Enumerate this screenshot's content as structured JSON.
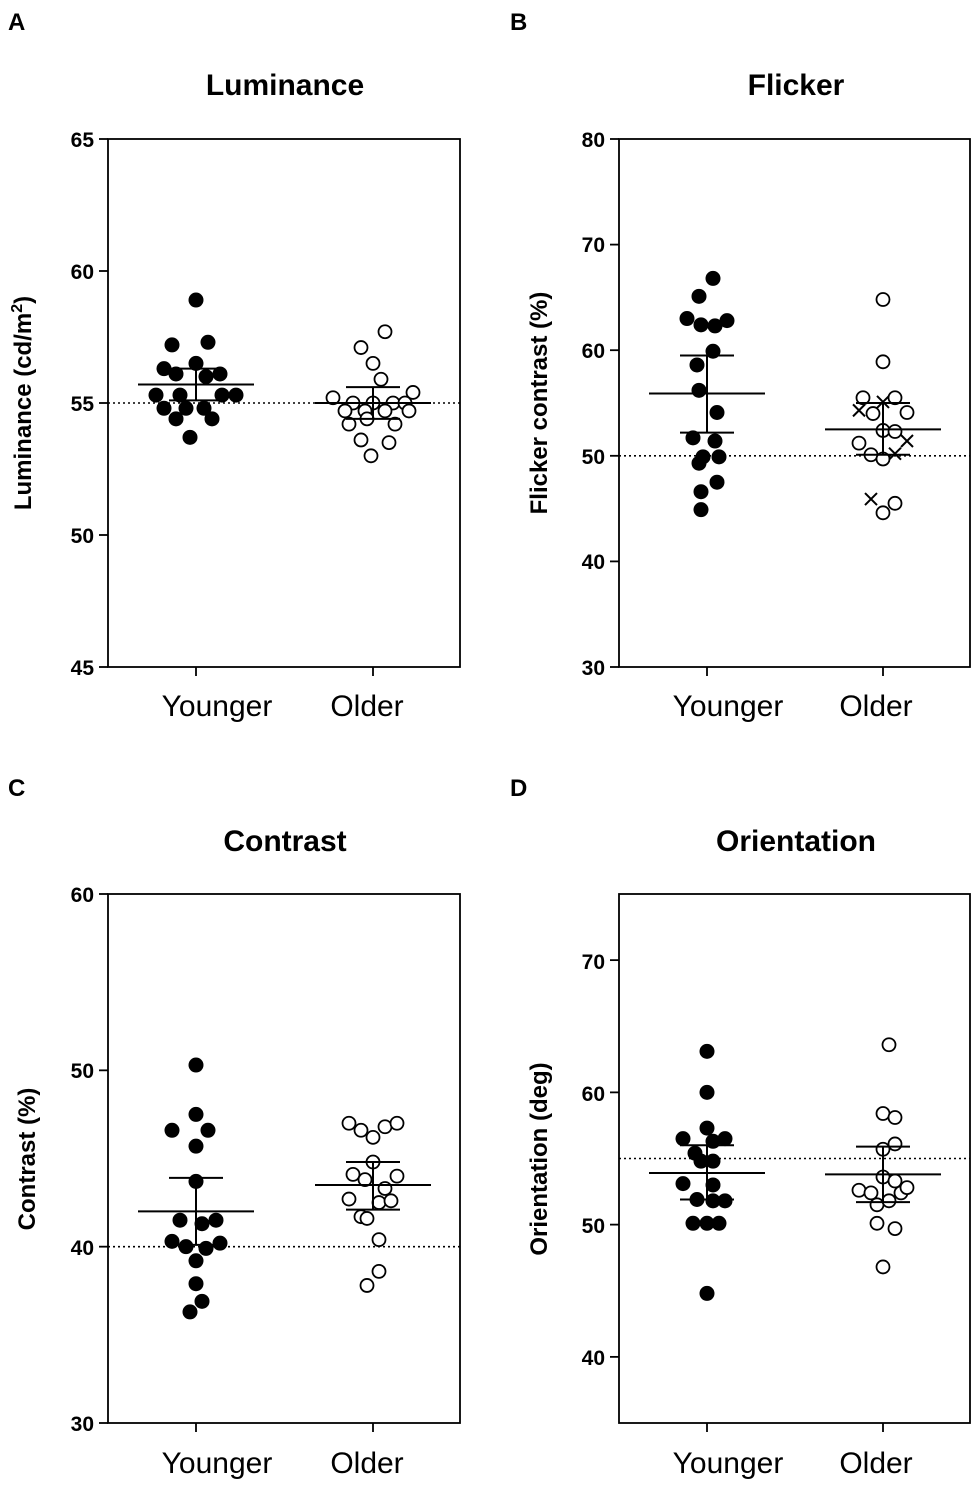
{
  "chart_data": [
    {
      "type": "scatter",
      "panel_label": "A",
      "title": "Luminance",
      "ylabel": "Luminance (cd/m",
      "ylabel_sup": "2",
      "ylabel_suffix": ")",
      "ylim": [
        45,
        65
      ],
      "yticks": [
        45,
        50,
        55,
        60,
        65
      ],
      "categories": [
        "Younger",
        "Older"
      ],
      "reference_line": 55,
      "series": [
        {
          "name": "Younger",
          "marker": "filled-circle",
          "mean": 55.7,
          "ci": [
            55.1,
            56.3
          ],
          "points": [
            [
              0,
              58.9
            ],
            [
              -0.24,
              57.2
            ],
            [
              0.12,
              57.3
            ],
            [
              -0.32,
              56.3
            ],
            [
              0,
              56.5
            ],
            [
              -0.2,
              56.1
            ],
            [
              0.1,
              56.0
            ],
            [
              0.24,
              56.1
            ],
            [
              -0.4,
              55.3
            ],
            [
              -0.16,
              55.3
            ],
            [
              0.26,
              55.3
            ],
            [
              0.4,
              55.3
            ],
            [
              -0.32,
              54.8
            ],
            [
              -0.1,
              54.8
            ],
            [
              0.08,
              54.8
            ],
            [
              -0.2,
              54.4
            ],
            [
              0.16,
              54.4
            ],
            [
              -0.06,
              53.7
            ]
          ]
        },
        {
          "name": "Older",
          "marker": "open-circle",
          "mean": 55.0,
          "ci": [
            54.4,
            55.6
          ],
          "points": [
            [
              0.12,
              57.7
            ],
            [
              -0.12,
              57.1
            ],
            [
              0,
              56.5
            ],
            [
              0.08,
              55.9
            ],
            [
              -0.4,
              55.2
            ],
            [
              0.4,
              55.4
            ],
            [
              -0.2,
              55.0
            ],
            [
              0.2,
              55.0
            ],
            [
              0.32,
              55.0
            ],
            [
              0,
              55.0
            ],
            [
              -0.28,
              54.7
            ],
            [
              -0.08,
              54.7
            ],
            [
              0.12,
              54.7
            ],
            [
              0.36,
              54.7
            ],
            [
              -0.06,
              54.4
            ],
            [
              -0.24,
              54.2
            ],
            [
              0.22,
              54.2
            ],
            [
              -0.12,
              53.6
            ],
            [
              0.16,
              53.5
            ],
            [
              -0.02,
              53.0
            ]
          ]
        }
      ]
    },
    {
      "type": "scatter",
      "panel_label": "B",
      "title": "Flicker",
      "ylabel": "Flicker contrast (%)",
      "ylim": [
        30,
        80
      ],
      "yticks": [
        30,
        40,
        50,
        60,
        70,
        80
      ],
      "categories": [
        "Younger",
        "Older"
      ],
      "reference_line": 50,
      "series": [
        {
          "name": "Younger",
          "marker": "filled-circle",
          "mean": 55.9,
          "ci": [
            52.2,
            59.5
          ],
          "points": [
            [
              0.06,
              66.8
            ],
            [
              -0.08,
              65.1
            ],
            [
              -0.2,
              63.0
            ],
            [
              0.2,
              62.8
            ],
            [
              -0.06,
              62.4
            ],
            [
              0.08,
              62.3
            ],
            [
              0.06,
              59.9
            ],
            [
              -0.1,
              58.6
            ],
            [
              -0.08,
              56.2
            ],
            [
              0.1,
              54.1
            ],
            [
              -0.14,
              51.7
            ],
            [
              0.08,
              51.4
            ],
            [
              -0.04,
              49.9
            ],
            [
              0.12,
              49.9
            ],
            [
              -0.08,
              49.3
            ],
            [
              0.1,
              47.5
            ],
            [
              -0.06,
              46.6
            ],
            [
              -0.06,
              44.9
            ]
          ]
        },
        {
          "name": "Older",
          "marker": "open-circle",
          "mean": 52.5,
          "ci": [
            50.1,
            55.0
          ],
          "points": [
            [
              0,
              64.8
            ],
            [
              0,
              58.9
            ],
            [
              -0.2,
              55.5
            ],
            [
              0.12,
              55.5
            ],
            [
              -0.1,
              54.0
            ],
            [
              0.24,
              54.1
            ],
            [
              -0.24,
              51.2
            ],
            [
              0,
              52.4
            ],
            [
              0.12,
              52.3
            ],
            [
              -0.12,
              50.1
            ],
            [
              0,
              49.7
            ],
            [
              0,
              44.6
            ],
            [
              0.12,
              45.5
            ]
          ]
        },
        {
          "name": "Older (cross)",
          "marker": "cross",
          "points": [
            [
              -0.24,
              54.3
            ],
            [
              0,
              55.1
            ],
            [
              0.12,
              50.2
            ],
            [
              0.24,
              51.4
            ],
            [
              -0.12,
              45.9
            ]
          ]
        }
      ]
    },
    {
      "type": "scatter",
      "panel_label": "C",
      "title": "Contrast",
      "ylabel": "Contrast (%)",
      "ylim": [
        30,
        60
      ],
      "yticks": [
        30,
        40,
        50,
        60
      ],
      "categories": [
        "Younger",
        "Older"
      ],
      "reference_line": 40,
      "series": [
        {
          "name": "Younger",
          "marker": "filled-circle",
          "mean": 42.0,
          "ci": [
            40.1,
            43.9
          ],
          "points": [
            [
              0,
              50.3
            ],
            [
              0,
              47.5
            ],
            [
              -0.24,
              46.6
            ],
            [
              0.12,
              46.6
            ],
            [
              0,
              45.7
            ],
            [
              0,
              43.7
            ],
            [
              -0.16,
              41.5
            ],
            [
              0.2,
              41.5
            ],
            [
              0.06,
              41.3
            ],
            [
              -0.24,
              40.3
            ],
            [
              0.24,
              40.2
            ],
            [
              -0.1,
              40.0
            ],
            [
              0.1,
              39.9
            ],
            [
              0,
              39.2
            ],
            [
              0,
              37.9
            ],
            [
              0.06,
              36.9
            ],
            [
              -0.06,
              36.3
            ]
          ]
        },
        {
          "name": "Older",
          "marker": "open-circle",
          "mean": 43.5,
          "ci": [
            42.1,
            44.8
          ],
          "points": [
            [
              -0.24,
              47.0
            ],
            [
              -0.12,
              46.6
            ],
            [
              0,
              46.2
            ],
            [
              0.12,
              46.8
            ],
            [
              0.24,
              47.0
            ],
            [
              0,
              44.8
            ],
            [
              -0.2,
              44.1
            ],
            [
              -0.08,
              43.8
            ],
            [
              0.12,
              43.3
            ],
            [
              0.24,
              44.0
            ],
            [
              0.06,
              42.5
            ],
            [
              0.18,
              42.6
            ],
            [
              -0.24,
              42.7
            ],
            [
              -0.12,
              41.7
            ],
            [
              -0.06,
              41.6
            ],
            [
              0.06,
              40.4
            ],
            [
              0.06,
              38.6
            ],
            [
              -0.06,
              37.8
            ]
          ]
        }
      ]
    },
    {
      "type": "scatter",
      "panel_label": "D",
      "title": "Orientation",
      "ylabel": "Orientation (deg)",
      "ylim": [
        35,
        75
      ],
      "yticks": [
        40,
        50,
        60,
        70
      ],
      "categories": [
        "Younger",
        "Older"
      ],
      "reference_line": 55,
      "series": [
        {
          "name": "Younger",
          "marker": "filled-circle",
          "mean": 53.9,
          "ci": [
            51.9,
            56.0
          ],
          "points": [
            [
              0,
              63.1
            ],
            [
              0,
              60.0
            ],
            [
              0,
              57.3
            ],
            [
              -0.24,
              56.5
            ],
            [
              0.06,
              56.3
            ],
            [
              0.18,
              56.5
            ],
            [
              -0.12,
              55.4
            ],
            [
              -0.06,
              54.8
            ],
            [
              0.06,
              54.8
            ],
            [
              -0.24,
              53.1
            ],
            [
              0.06,
              53.0
            ],
            [
              -0.1,
              51.9
            ],
            [
              0.06,
              51.8
            ],
            [
              0.18,
              51.8
            ],
            [
              -0.14,
              50.1
            ],
            [
              0,
              50.1
            ],
            [
              0.12,
              50.1
            ],
            [
              0,
              44.8
            ]
          ]
        },
        {
          "name": "Older",
          "marker": "open-circle",
          "mean": 53.8,
          "ci": [
            51.7,
            55.9
          ],
          "points": [
            [
              0.06,
              63.6
            ],
            [
              0,
              58.4
            ],
            [
              0.12,
              58.1
            ],
            [
              0,
              55.7
            ],
            [
              0.12,
              56.1
            ],
            [
              0,
              53.6
            ],
            [
              0.12,
              53.3
            ],
            [
              -0.24,
              52.6
            ],
            [
              -0.12,
              52.4
            ],
            [
              0.18,
              52.4
            ],
            [
              0.24,
              52.8
            ],
            [
              -0.06,
              51.5
            ],
            [
              0.06,
              51.8
            ],
            [
              0.12,
              49.7
            ],
            [
              -0.06,
              50.1
            ],
            [
              0,
              46.8
            ]
          ]
        }
      ]
    }
  ]
}
